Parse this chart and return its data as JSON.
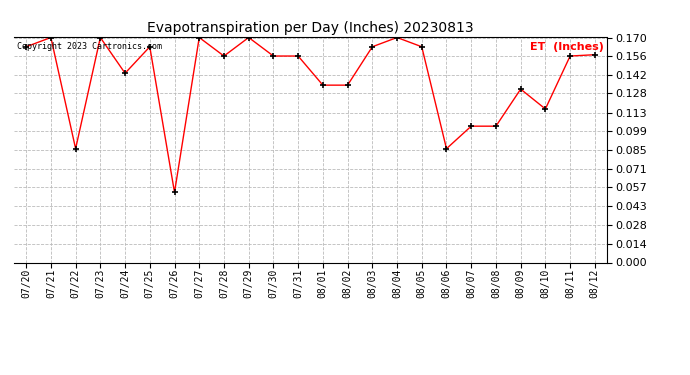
{
  "title": "Evapotranspiration per Day (Inches) 20230813",
  "legend_label": "ET  (Inches)",
  "copyright": "Copyright 2023 Cartronics.com",
  "x_labels": [
    "07/20",
    "07/21",
    "07/22",
    "07/23",
    "07/24",
    "07/25",
    "07/26",
    "07/27",
    "07/28",
    "07/29",
    "07/30",
    "07/31",
    "08/01",
    "08/02",
    "08/03",
    "08/04",
    "08/05",
    "08/06",
    "08/07",
    "08/08",
    "08/09",
    "08/10",
    "08/11",
    "08/12"
  ],
  "y_values": [
    0.163,
    0.17,
    0.086,
    0.17,
    0.143,
    0.163,
    0.053,
    0.17,
    0.156,
    0.17,
    0.156,
    0.156,
    0.134,
    0.134,
    0.163,
    0.17,
    0.163,
    0.086,
    0.103,
    0.103,
    0.131,
    0.116,
    0.156,
    0.157
  ],
  "line_color": "red",
  "marker_color": "black",
  "marker": "+",
  "grid_color": "#bbbbbb",
  "background_color": "white",
  "ylim_min": 0.0,
  "ylim_max": 0.17,
  "yticks": [
    0.0,
    0.014,
    0.028,
    0.043,
    0.057,
    0.071,
    0.085,
    0.099,
    0.113,
    0.128,
    0.142,
    0.156,
    0.17
  ],
  "title_fontsize": 10,
  "tick_fontsize": 7,
  "legend_fontsize": 8,
  "copyright_fontsize": 6
}
